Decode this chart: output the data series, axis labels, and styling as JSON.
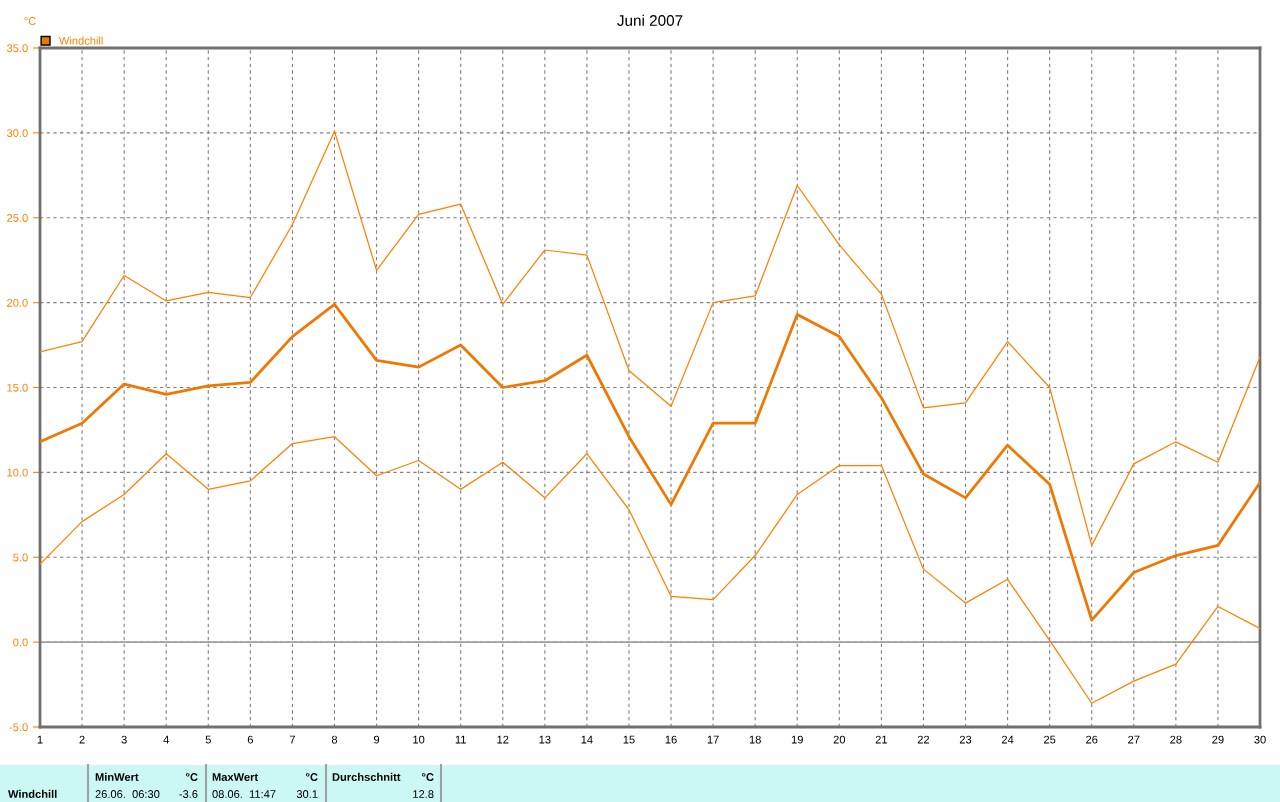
{
  "chart_data": {
    "type": "line",
    "title": "Juni 2007",
    "ylabel": "°C",
    "x": [
      1,
      2,
      3,
      4,
      5,
      6,
      7,
      8,
      9,
      10,
      11,
      12,
      13,
      14,
      15,
      16,
      17,
      18,
      19,
      20,
      21,
      22,
      23,
      24,
      25,
      26,
      27,
      28,
      29,
      30
    ],
    "series": [
      {
        "color": "#ff8000",
        "values": [
          17.1,
          17.7,
          21.6,
          20.1,
          20.6,
          20.3,
          24.6,
          30.1,
          21.9,
          25.2,
          25.8,
          19.9,
          23.1,
          22.8,
          16.0,
          13.9,
          20.0,
          20.4,
          26.9,
          23.4,
          20.5,
          13.8,
          14.1,
          17.7,
          15.0,
          5.7,
          10.5,
          11.8,
          10.6,
          16.8
        ]
      },
      {
        "name": "Windchill",
        "color": "#f07800",
        "values": [
          11.8,
          12.9,
          15.2,
          14.6,
          15.1,
          15.3,
          18.0,
          19.9,
          16.6,
          16.2,
          17.5,
          15.0,
          15.4,
          16.9,
          12.1,
          8.1,
          12.9,
          12.9,
          19.3,
          18.0,
          14.4,
          9.9,
          8.5,
          11.6,
          9.3,
          1.3,
          4.1,
          5.1,
          5.7,
          9.4
        ]
      },
      {
        "color": "#ff8000",
        "values": [
          4.6,
          7.1,
          8.7,
          11.1,
          9.0,
          9.5,
          11.7,
          12.1,
          9.8,
          10.7,
          9.0,
          10.6,
          8.5,
          11.1,
          7.8,
          2.7,
          2.5,
          5.1,
          8.7,
          10.4,
          10.4,
          4.3,
          2.3,
          3.7,
          0.1,
          -3.6,
          -2.3,
          -1.3,
          2.1,
          0.8
        ]
      }
    ],
    "xlim": [
      1,
      30
    ],
    "xticks": [
      1,
      2,
      3,
      4,
      5,
      6,
      7,
      8,
      9,
      10,
      11,
      12,
      13,
      14,
      15,
      16,
      17,
      18,
      19,
      20,
      21,
      22,
      23,
      24,
      25,
      26,
      27,
      28,
      29,
      30
    ],
    "ylim": [
      -5,
      35
    ],
    "yticks": [
      {
        "value": -5,
        "label": "-5.0"
      },
      {
        "value": 0,
        "label": "0.0"
      },
      {
        "value": 5,
        "label": "5.0"
      },
      {
        "value": 10,
        "label": "10.0"
      },
      {
        "value": 15,
        "label": "15.0"
      },
      {
        "value": 20,
        "label": "20.0"
      },
      {
        "value": 25,
        "label": "25.0"
      },
      {
        "value": 30,
        "label": "30.0"
      },
      {
        "value": 35,
        "label": "35.0"
      }
    ],
    "grid": true,
    "legend": "top left",
    "marker": "none",
    "line_style": "solid",
    "ref_lines": [
      {
        "axis": "y",
        "value": 0,
        "color": "#a0a0a0",
        "line_style": "solid"
      }
    ],
    "annotations": [
      "Windchill",
      "MinWert",
      "°C",
      "26.06.  06:30",
      "-3.6",
      "MaxWert",
      "°C",
      "08.06.  11:47",
      "30.1",
      "Durchschnitt",
      "°C",
      "12.8"
    ]
  }
}
